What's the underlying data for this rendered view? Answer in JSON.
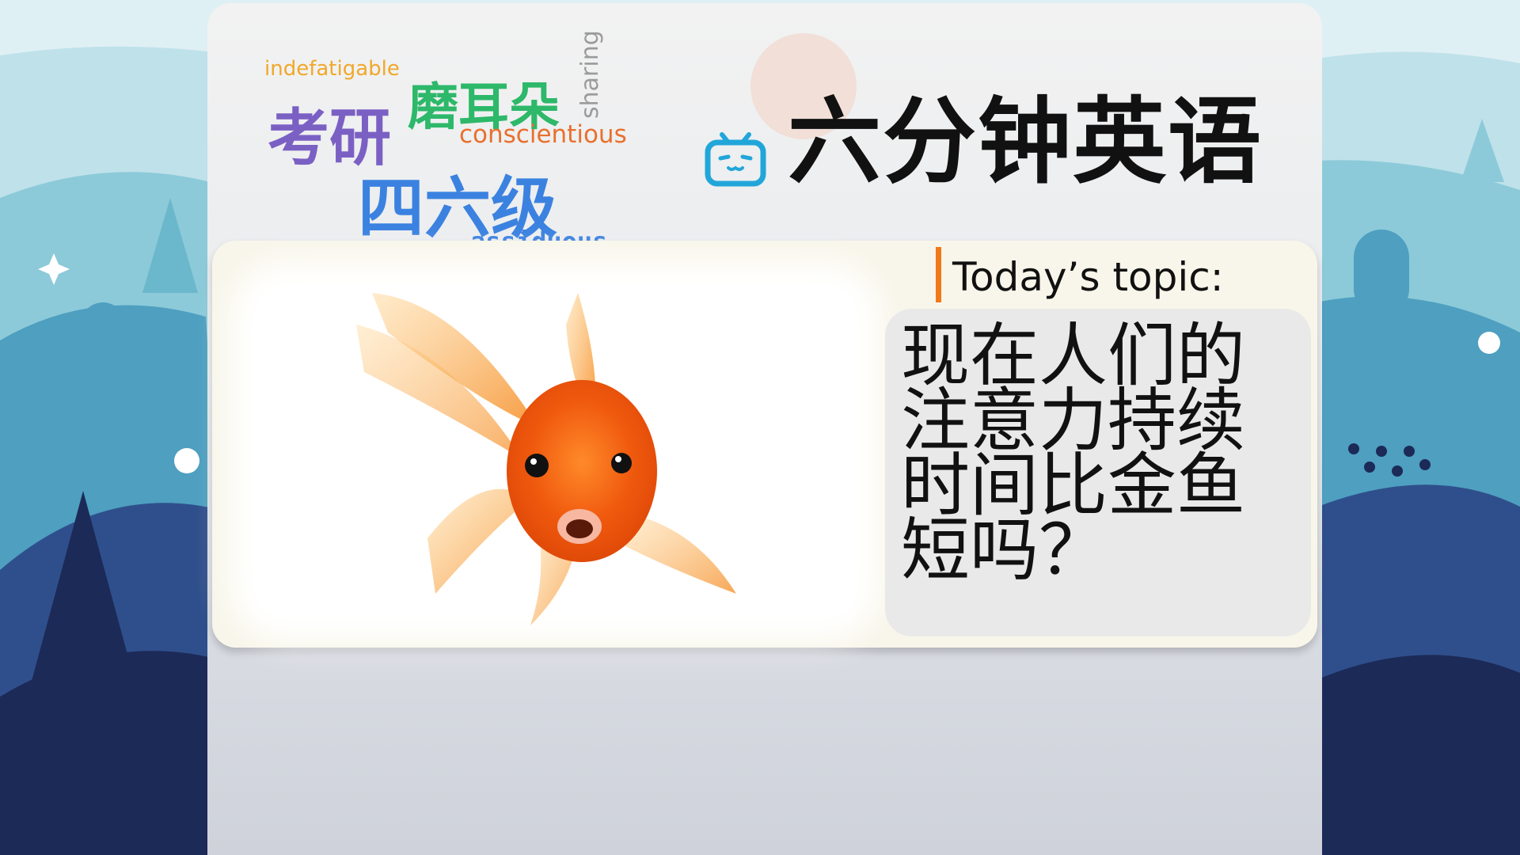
{
  "header": {
    "title": "六分钟英语",
    "logo_icon": "bilibili-tv-icon"
  },
  "word_cloud": {
    "indefatigable": "indefatigable",
    "mo_er_duo": "磨耳朵",
    "sharing": "sharing",
    "kao_yan": "考研",
    "conscientious": "conscientious",
    "si_liu_ji": "四六级",
    "assiduous": "assiduous"
  },
  "colors": {
    "accent_orange": "#f07a1a",
    "word_yellow": "#f1a82a",
    "word_green": "#2db86a",
    "word_purple": "#7b60c4",
    "word_blue": "#3b82e0",
    "word_orange": "#e8702e",
    "word_grey": "#9b9b9b",
    "logo_blue": "#22a6d9"
  },
  "topic": {
    "label": "Today’s topic:",
    "question": "现在人们的注意力持续时间比金鱼短吗？"
  },
  "image": {
    "subject": "goldfish-illustration"
  }
}
